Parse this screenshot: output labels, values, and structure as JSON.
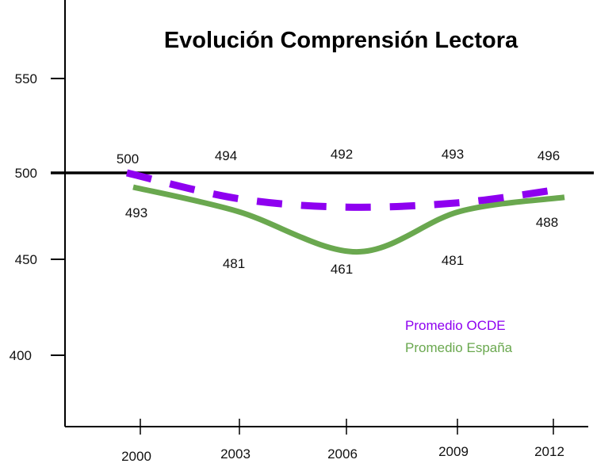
{
  "chart_data": {
    "type": "line",
    "title": "Evolución Comprensión Lectora",
    "xlabel": "",
    "ylabel": "",
    "x": [
      "2000",
      "2003",
      "2006",
      "2009",
      "2012"
    ],
    "yticks": [
      "550",
      "500",
      "450",
      "400"
    ],
    "ylim": [
      370,
      600
    ],
    "reference_line": 500,
    "grid": false,
    "legend_position": "bottom-right",
    "series": [
      {
        "name": "Promedio OCDE",
        "color": "#8e00f0",
        "style": "dashed",
        "values": [
          500,
          494,
          492,
          493,
          496
        ]
      },
      {
        "name": "Promedio España",
        "color": "#6aa84f",
        "style": "solid",
        "values": [
          493,
          481,
          461,
          481,
          488
        ]
      }
    ]
  }
}
